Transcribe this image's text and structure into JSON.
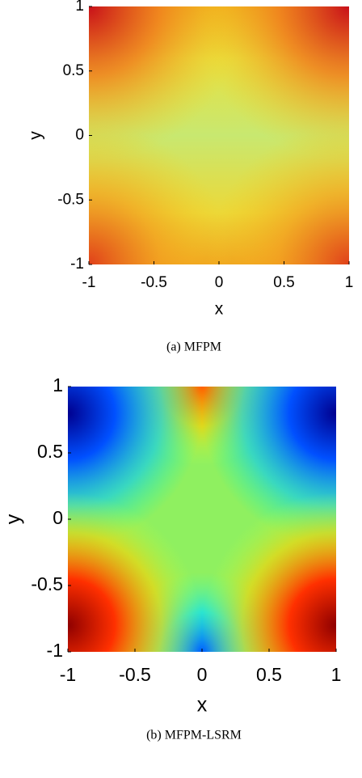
{
  "chart_data": [
    {
      "type": "heatmap",
      "xlabel": "x",
      "ylabel": "y",
      "caption": "(a) MFPM",
      "xlim": [
        -1,
        1
      ],
      "ylim": [
        -1,
        1
      ],
      "xticks": [
        -1,
        -0.5,
        0,
        0.5,
        1
      ],
      "yticks": [
        -1,
        -0.5,
        0,
        0.5,
        1
      ]
    },
    {
      "type": "heatmap",
      "xlabel": "x",
      "ylabel": "y",
      "caption": "(b) MFPM-LSRM",
      "xlim": [
        -1,
        1
      ],
      "ylim": [
        -1,
        1
      ],
      "xticks": [
        -1,
        -0.5,
        0,
        0.5,
        1
      ],
      "yticks": [
        -1,
        -0.5,
        0,
        0.5,
        1
      ]
    }
  ]
}
